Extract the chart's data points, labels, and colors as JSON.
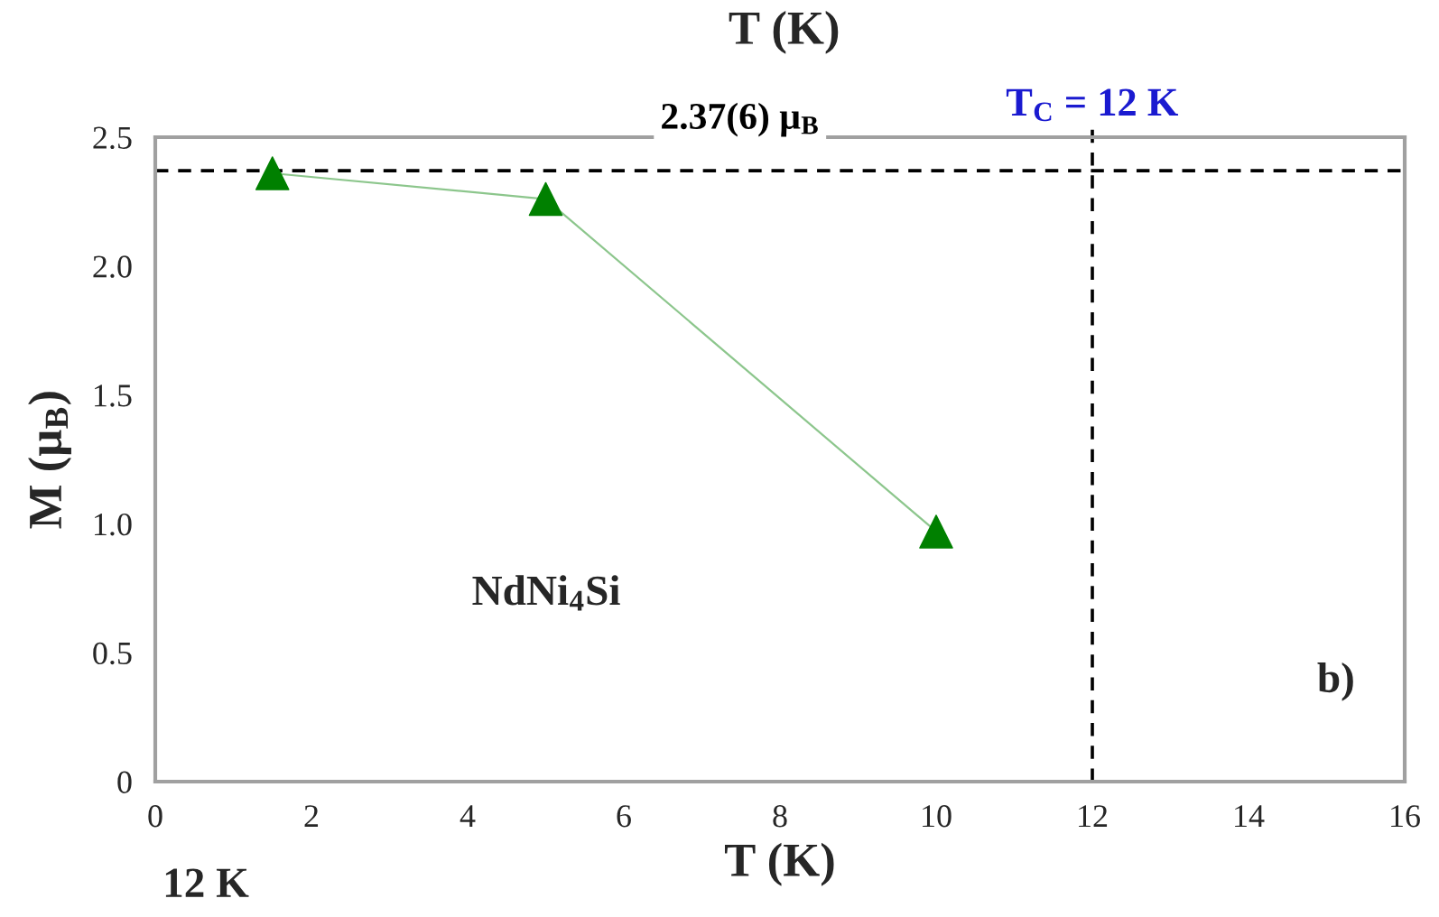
{
  "chart_data": {
    "type": "line",
    "title": "T (K)",
    "xlabel": "T (K)",
    "ylabel": "M (μ$_{B}$)",
    "x": [
      1.5,
      5,
      10
    ],
    "series": [
      {
        "color": "#008000",
        "values": [
          2.36,
          2.26,
          0.97
        ]
      }
    ],
    "marker": "triangle",
    "line_style": "solid",
    "xlim": [
      0,
      16
    ],
    "xticks": [
      0,
      2,
      4,
      6,
      8,
      10,
      12,
      14,
      16
    ],
    "ylim": [
      0,
      2.5
    ],
    "yticks": [
      0,
      0.5,
      {
        "value": 1,
        "label": "1.0"
      },
      1.5,
      {
        "value": 2,
        "label": "2.0"
      },
      2.5
    ],
    "grid": false,
    "legend": false,
    "ref_lines": [
      {
        "axis": "y",
        "value": 2.37,
        "label": "2.37(6) μ$_{B}$",
        "color": "#000000",
        "line_style": "dashed"
      },
      {
        "axis": "x",
        "value": 12,
        "label": "T$_{C}$ = 12 K",
        "color": "#000000",
        "line_style": "dashed"
      }
    ],
    "annotations": [
      "NdNi$_{4}$Si",
      "b)",
      "12 K"
    ]
  }
}
